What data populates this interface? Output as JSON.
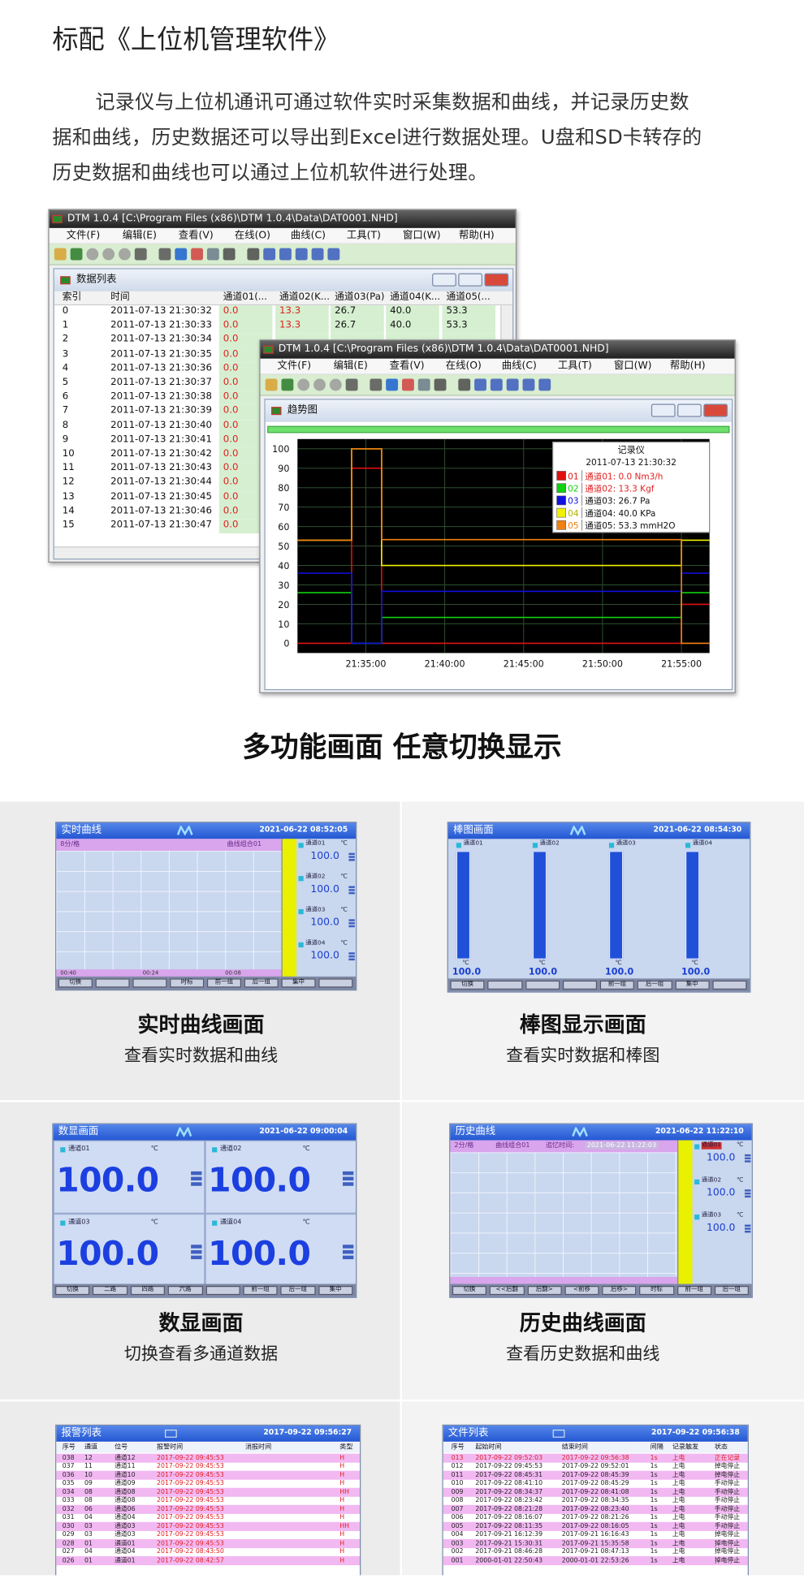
{
  "header": {
    "title": "标配《上位机管理软件》"
  },
  "intro": {
    "text": "记录仪与上位机通讯可通过软件实时采集数据和曲线，并记录历史数据和曲线，历史数据还可以导出到Excel进行数据处理。U盘和SD卡转存的历史数据和曲线也可以通过上位机软件进行处理。"
  },
  "software": {
    "window_title": "DTM 1.0.4 [C:\\Program Files (x86)\\DTM 1.0.4\\Data\\DAT0001.NHD]",
    "menu": [
      "文件(F)",
      "编辑(E)",
      "查看(V)",
      "在线(O)",
      "曲线(C)",
      "工具(T)",
      "窗口(W)",
      "帮助(H)"
    ],
    "list_window": {
      "title": "数据列表",
      "columns": [
        "索引",
        "时间",
        "通道01(...",
        "通道02(K...",
        "通道03(Pa)",
        "通道04(K...",
        "通道05(..."
      ],
      "rows": [
        [
          "0",
          "2011-07-13 21:30:32",
          "0.0",
          "13.3",
          "26.7",
          "40.0",
          "53.3"
        ],
        [
          "1",
          "2011-07-13 21:30:33",
          "0.0",
          "13.3",
          "26.7",
          "40.0",
          "53.3"
        ],
        [
          "2",
          "2011-07-13 21:30:34",
          "0.0"
        ],
        [
          "3",
          "2011-07-13 21:30:35",
          "0.0"
        ],
        [
          "4",
          "2011-07-13 21:30:36",
          "0.0"
        ],
        [
          "5",
          "2011-07-13 21:30:37",
          "0.0"
        ],
        [
          "6",
          "2011-07-13 21:30:38",
          "0.0"
        ],
        [
          "7",
          "2011-07-13 21:30:39",
          "0.0"
        ],
        [
          "8",
          "2011-07-13 21:30:40",
          "0.0"
        ],
        [
          "9",
          "2011-07-13 21:30:41",
          "0.0"
        ],
        [
          "10",
          "2011-07-13 21:30:42",
          "0.0"
        ],
        [
          "11",
          "2011-07-13 21:30:43",
          "0.0"
        ],
        [
          "12",
          "2011-07-13 21:30:44",
          "0.0"
        ],
        [
          "13",
          "2011-07-13 21:30:45",
          "0.0"
        ],
        [
          "14",
          "2011-07-13 21:30:46",
          "0.0"
        ],
        [
          "15",
          "2011-07-13 21:30:47",
          "0.0"
        ]
      ]
    },
    "trend_window": {
      "title": "趋势图"
    }
  },
  "chart_data": {
    "type": "line",
    "legend_title": "记录仪",
    "legend_subtitle": "2011-07-13 21:30:32",
    "x": [
      0.67,
      4.1,
      4.1,
      6.0,
      6.0,
      25.0,
      25.0,
      26.78
    ],
    "xlim": [
      0.67,
      26.78
    ],
    "xticks": [
      {
        "value": 5,
        "label": "21:35:00"
      },
      {
        "value": 10,
        "label": "21:40:00"
      },
      {
        "value": 15,
        "label": "21:45:00"
      },
      {
        "value": 20,
        "label": "21:50:00"
      },
      {
        "value": 25,
        "label": "21:55:00"
      }
    ],
    "ylim": [
      -5,
      105
    ],
    "yticks": [
      0,
      10,
      20,
      30,
      40,
      50,
      60,
      70,
      80,
      90,
      100
    ],
    "grid": true,
    "series": [
      {
        "label": "01",
        "name": "通道01: 0.0 Nm3/h",
        "color": "#e01010",
        "values": [
          0,
          0,
          90,
          90,
          0,
          0,
          20,
          20
        ]
      },
      {
        "label": "02",
        "name": "通道02: 13.3 Kgf",
        "color": "#10d010",
        "values": [
          26,
          26,
          0,
          0,
          13.3,
          13.3,
          26,
          26
        ]
      },
      {
        "label": "03",
        "name": "通道03: 26.7 Pa",
        "color": "#1010e0",
        "values": [
          36,
          36,
          0,
          0,
          26.7,
          26.7,
          36,
          36
        ]
      },
      {
        "label": "04",
        "name": "通道04: 40.0 KPa",
        "color": "#f0f000",
        "values": [
          53,
          53,
          100,
          100,
          40,
          40,
          53,
          53
        ]
      },
      {
        "label": "05",
        "name": "通道05: 53.3 mmH2O",
        "color": "#f08010",
        "values": [
          53,
          53,
          100,
          100,
          53.3,
          53.3,
          0,
          0
        ]
      }
    ]
  },
  "section_title": "多功能画面 任意切换显示",
  "screens": [
    {
      "title": "实时曲线",
      "date": "2021-06-22 08:52:05",
      "subheader": [
        "8分/格",
        "曲线组合01"
      ],
      "time_labels": [
        "00:40",
        "00:24",
        "00:08"
      ],
      "channels": [
        {
          "name": "通道01",
          "unit": "℃",
          "value": "100.0"
        },
        {
          "name": "通道02",
          "unit": "℃",
          "value": "100.0"
        },
        {
          "name": "通道03",
          "unit": "℃",
          "value": "100.0"
        },
        {
          "name": "通道04",
          "unit": "℃",
          "value": "100.0"
        }
      ],
      "buttons": [
        "切换",
        "时标",
        "前一组",
        "后一组",
        "集中"
      ],
      "caption": "实时曲线画面",
      "subcaption": "查看实时数据和曲线"
    },
    {
      "title": "棒图画面",
      "date": "2021-06-22 08:54:30",
      "channels": [
        {
          "name": "通道01",
          "unit": "℃",
          "value": "100.0"
        },
        {
          "name": "通道02",
          "unit": "℃",
          "value": "100.0"
        },
        {
          "name": "通道03",
          "unit": "℃",
          "value": "100.0"
        },
        {
          "name": "通道04",
          "unit": "℃",
          "value": "100.0"
        }
      ],
      "buttons": [
        "切换",
        "前一组",
        "后一组",
        "集中"
      ],
      "caption": "棒图显示画面",
      "subcaption": "查看实时数据和棒图"
    },
    {
      "title": "数显画面",
      "date": "2021-06-22 09:00:04",
      "channels": [
        {
          "name": "通道01",
          "unit": "℃",
          "value": "100.0"
        },
        {
          "name": "通道02",
          "unit": "℃",
          "value": "100.0"
        },
        {
          "name": "通道03",
          "unit": "℃",
          "value": "100.0"
        },
        {
          "name": "通道04",
          "unit": "℃",
          "value": "100.0"
        }
      ],
      "buttons": [
        "切换",
        "二路",
        "四路",
        "六路",
        "前一组",
        "后一组",
        "集中"
      ],
      "caption": "数显画面",
      "subcaption": "切换查看多通道数据"
    },
    {
      "title": "历史曲线",
      "date": "2021-06-22 11:22:10",
      "subheader": [
        "2分/格",
        "曲线组合01",
        "追忆时间:",
        "2021-06-22 11:22:03"
      ],
      "channels": [
        {
          "name": "通道01",
          "unit": "℃",
          "value": "100.0"
        },
        {
          "name": "通道02",
          "unit": "℃",
          "value": "100.0"
        },
        {
          "name": "通道03",
          "unit": "℃",
          "value": "100.0"
        }
      ],
      "buttons": [
        "切换",
        "<<后翻",
        "后翻>",
        "<前移",
        "后移>",
        "时标",
        "前一组",
        "后一组"
      ],
      "caption": "历史曲线画面",
      "subcaption": "查看历史数据和曲线"
    }
  ],
  "tables": [
    {
      "title": "报警列表",
      "date": "2017-09-22 09:56:27",
      "columns": [
        "序号",
        "通道",
        "位号",
        "报警时间",
        "消报时间",
        "类型"
      ],
      "rows": [
        [
          "038",
          "12",
          "通道12",
          "2017-09-22 09:45:53",
          "H"
        ],
        [
          "037",
          "11",
          "通道11",
          "2017-09-22 09:45:53",
          "H"
        ],
        [
          "036",
          "10",
          "通道10",
          "2017-09-22 09:45:53",
          "H"
        ],
        [
          "035",
          "09",
          "通道09",
          "2017-09-22 09:45:53",
          "H"
        ],
        [
          "034",
          "08",
          "通道08",
          "2017-09-22 09:45:53",
          "HH"
        ],
        [
          "033",
          "08",
          "通道08",
          "2017-09-22 09:45:53",
          "H"
        ],
        [
          "032",
          "06",
          "通道06",
          "2017-09-22 09:45:53",
          "H"
        ],
        [
          "031",
          "04",
          "通道04",
          "2017-09-22 09:45:53",
          "H"
        ],
        [
          "030",
          "03",
          "通道03",
          "2017-09-22 09:45:53",
          "HH"
        ],
        [
          "029",
          "03",
          "通道03",
          "2017-09-22 09:45:53",
          "H"
        ],
        [
          "028",
          "01",
          "通道01",
          "2017-09-22 09:45:53",
          "H"
        ],
        [
          "027",
          "04",
          "通道04",
          "2017-09-22 08:43:50",
          "H"
        ],
        [
          "026",
          "01",
          "通道01",
          "2017-09-22 08:42:57",
          "H"
        ]
      ]
    },
    {
      "title": "文件列表",
      "date": "2017-09-22 09:56:38",
      "columns": [
        "序号",
        "起始时间",
        "结束时间",
        "间隔",
        "记录触发",
        "状态"
      ],
      "rows": [
        [
          "013",
          "2017-09-22 09:52:03",
          "2017-09-22 09:56:38",
          "1s",
          "上电",
          "正在记录"
        ],
        [
          "012",
          "2017-09-22 09:45:53",
          "2017-09-22 09:52:01",
          "1s",
          "上电",
          "掉电停止"
        ],
        [
          "011",
          "2017-09-22 08:45:31",
          "2017-09-22 08:45:39",
          "1s",
          "上电",
          "掉电停止"
        ],
        [
          "010",
          "2017-09-22 08:41:10",
          "2017-09-22 08:45:29",
          "1s",
          "上电",
          "手动停止"
        ],
        [
          "009",
          "2017-09-22 08:34:37",
          "2017-09-22 08:41:08",
          "1s",
          "上电",
          "手动停止"
        ],
        [
          "008",
          "2017-09-22 08:23:42",
          "2017-09-22 08:34:35",
          "1s",
          "上电",
          "手动停止"
        ],
        [
          "007",
          "2017-09-22 08:21:28",
          "2017-09-22 08:23:40",
          "1s",
          "上电",
          "手动停止"
        ],
        [
          "006",
          "2017-09-22 08:16:07",
          "2017-09-22 08:21:26",
          "1s",
          "上电",
          "手动停止"
        ],
        [
          "005",
          "2017-09-22 08:11:35",
          "2017-09-22 08:16:05",
          "1s",
          "上电",
          "手动停止"
        ],
        [
          "004",
          "2017-09-21 16:12:39",
          "2017-09-21 16:16:43",
          "1s",
          "上电",
          "掉电停止"
        ],
        [
          "003",
          "2017-09-21 15:30:31",
          "2017-09-21 15:35:58",
          "1s",
          "上电",
          "掉电停止"
        ],
        [
          "002",
          "2017-09-21 08:46:28",
          "2017-09-21 08:47:13",
          "1s",
          "上电",
          "掉电停止"
        ],
        [
          "001",
          "2000-01-01 22:50:43",
          "2000-01-01 22:53:26",
          "1s",
          "上电",
          "掉电停止"
        ]
      ]
    }
  ]
}
